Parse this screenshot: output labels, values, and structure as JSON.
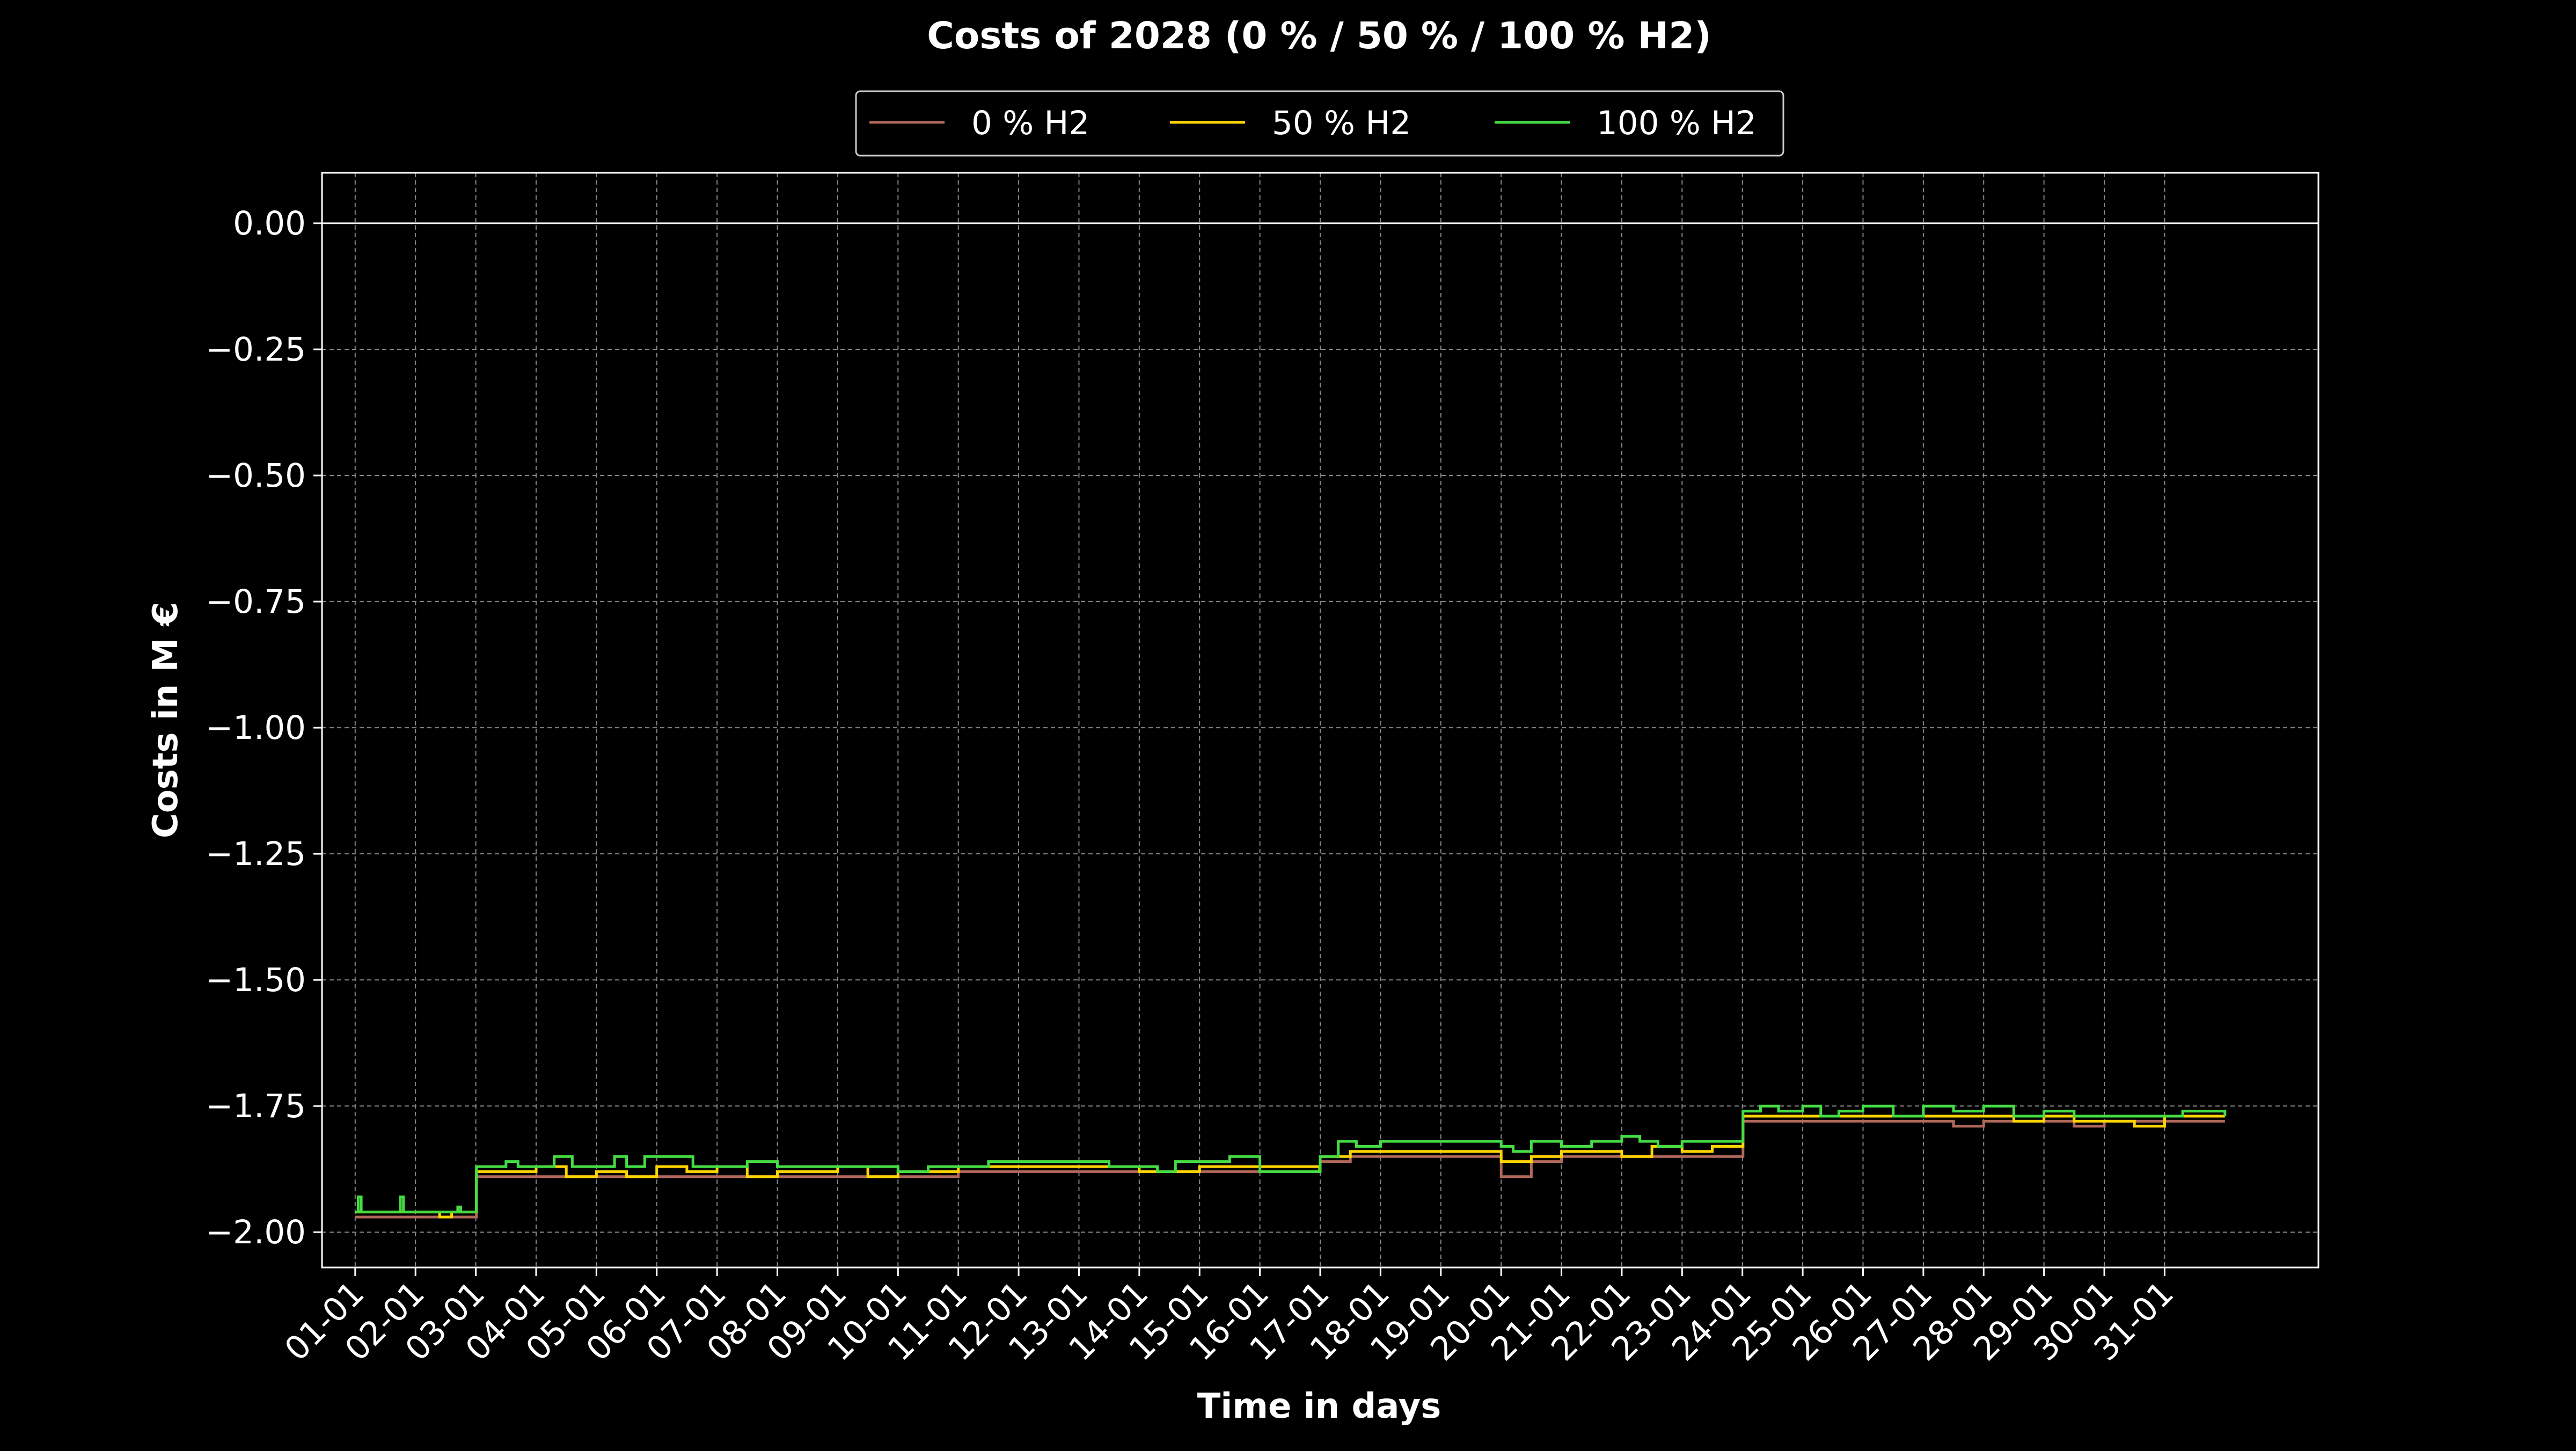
{
  "chart_data": {
    "type": "line",
    "title": "Costs of 2028 (0 % / 50 % / 100 % H2)",
    "xlabel": "Time in days",
    "ylabel": "Costs in M €",
    "background": "#000000",
    "grid": true,
    "legend_position": "top-center",
    "x_ticks": [
      "01-01",
      "02-01",
      "03-01",
      "04-01",
      "05-01",
      "06-01",
      "07-01",
      "08-01",
      "09-01",
      "10-01",
      "11-01",
      "12-01",
      "13-01",
      "14-01",
      "15-01",
      "16-01",
      "17-01",
      "18-01",
      "19-01",
      "20-01",
      "21-01",
      "22-01",
      "23-01",
      "24-01",
      "25-01",
      "26-01",
      "27-01",
      "28-01",
      "29-01",
      "30-01",
      "31-01"
    ],
    "x_unit": "day of January 2028",
    "xlim": [
      -0.55,
      32.55
    ],
    "y_ticks": [
      0.0,
      -0.25,
      -0.5,
      -0.75,
      -1.0,
      -1.25,
      -1.5,
      -1.75,
      -2.0
    ],
    "y_tick_labels": [
      "0.00",
      "−0.25",
      "−0.50",
      "−0.75",
      "−1.00",
      "−1.25",
      "−1.50",
      "−1.75",
      "−2.00"
    ],
    "ylim": [
      -2.07,
      0.1
    ],
    "reference_line_y": 0.0,
    "series": [
      {
        "name": "0 % H2",
        "color": "#b0685a",
        "x": [
          0,
          0.5,
          1,
          1.5,
          2,
          2.01,
          3,
          4,
          5,
          6,
          7,
          8,
          9,
          10,
          11,
          12,
          13,
          14,
          14.01,
          15,
          15.99,
          16,
          16.5,
          17,
          17.5,
          18,
          18.5,
          19,
          19.5,
          20,
          20.5,
          21,
          21.5,
          22,
          22.5,
          23,
          23.01,
          24,
          25,
          26,
          26.5,
          27,
          28,
          28.5,
          29,
          30,
          30.5,
          31
        ],
        "y": [
          -1.97,
          -1.97,
          -1.97,
          -1.97,
          -1.97,
          -1.89,
          -1.89,
          -1.89,
          -1.89,
          -1.89,
          -1.89,
          -1.89,
          -1.89,
          -1.88,
          -1.88,
          -1.88,
          -1.88,
          -1.88,
          -1.88,
          -1.88,
          -1.88,
          -1.86,
          -1.85,
          -1.85,
          -1.85,
          -1.85,
          -1.85,
          -1.89,
          -1.86,
          -1.85,
          -1.85,
          -1.85,
          -1.85,
          -1.85,
          -1.85,
          -1.85,
          -1.78,
          -1.78,
          -1.78,
          -1.78,
          -1.79,
          -1.78,
          -1.78,
          -1.79,
          -1.78,
          -1.78,
          -1.78,
          -1.78
        ]
      },
      {
        "name": "50 % H2",
        "color": "#ffd400",
        "x": [
          0,
          0.5,
          1,
          1.4,
          1.6,
          2,
          2.01,
          2.5,
          3,
          3.5,
          4,
          4.5,
          5,
          5.5,
          6,
          6.5,
          7,
          7.5,
          8,
          8.5,
          9,
          9.5,
          10,
          11,
          12,
          13,
          14,
          15,
          15.99,
          16,
          16.5,
          17,
          17.5,
          18,
          18.5,
          19,
          19.5,
          20,
          20.5,
          21,
          21.5,
          22,
          22.5,
          23,
          23.01,
          24,
          25,
          26,
          27,
          27.5,
          28,
          28.5,
          29,
          29.5,
          30,
          30.5,
          31
        ],
        "y": [
          -1.96,
          -1.96,
          -1.96,
          -1.97,
          -1.96,
          -1.96,
          -1.88,
          -1.88,
          -1.87,
          -1.89,
          -1.88,
          -1.89,
          -1.87,
          -1.88,
          -1.87,
          -1.89,
          -1.88,
          -1.88,
          -1.87,
          -1.89,
          -1.88,
          -1.88,
          -1.87,
          -1.87,
          -1.87,
          -1.88,
          -1.87,
          -1.87,
          -1.88,
          -1.85,
          -1.84,
          -1.84,
          -1.84,
          -1.84,
          -1.84,
          -1.86,
          -1.85,
          -1.84,
          -1.84,
          -1.85,
          -1.83,
          -1.84,
          -1.83,
          -1.83,
          -1.77,
          -1.77,
          -1.77,
          -1.77,
          -1.77,
          -1.78,
          -1.77,
          -1.78,
          -1.78,
          -1.79,
          -1.77,
          -1.77,
          -1.77
        ]
      },
      {
        "name": "100 % H2",
        "color": "#44dd44",
        "x": [
          0,
          0.05,
          0.1,
          0.5,
          0.7,
          0.75,
          0.8,
          1,
          1.5,
          1.7,
          1.75,
          1.8,
          2,
          2.01,
          2.3,
          2.5,
          2.7,
          3,
          3.3,
          3.6,
          4,
          4.3,
          4.5,
          4.8,
          5,
          5.3,
          5.6,
          6,
          6.5,
          7,
          7.5,
          8,
          8.5,
          9,
          9.5,
          10,
          10.5,
          11,
          11.5,
          12,
          12.5,
          13,
          13.3,
          13.6,
          14,
          14.5,
          15,
          15.5,
          15.99,
          16,
          16.3,
          16.6,
          17,
          17.5,
          18,
          18.5,
          19,
          19.2,
          19.5,
          20,
          20.5,
          21,
          21.3,
          21.6,
          22,
          22.3,
          22.6,
          23,
          23.01,
          23.3,
          23.6,
          24,
          24.3,
          24.6,
          25,
          25.5,
          26,
          26.5,
          27,
          27.5,
          28,
          28.5,
          29,
          29.5,
          30,
          30.3,
          30.6,
          31
        ],
        "y": [
          -1.96,
          -1.93,
          -1.96,
          -1.96,
          -1.96,
          -1.93,
          -1.96,
          -1.96,
          -1.96,
          -1.95,
          -1.96,
          -1.96,
          -1.96,
          -1.87,
          -1.87,
          -1.86,
          -1.87,
          -1.87,
          -1.85,
          -1.87,
          -1.87,
          -1.85,
          -1.87,
          -1.85,
          -1.85,
          -1.85,
          -1.87,
          -1.87,
          -1.86,
          -1.87,
          -1.87,
          -1.87,
          -1.87,
          -1.88,
          -1.87,
          -1.87,
          -1.86,
          -1.86,
          -1.86,
          -1.86,
          -1.87,
          -1.87,
          -1.88,
          -1.86,
          -1.86,
          -1.85,
          -1.88,
          -1.88,
          -1.88,
          -1.85,
          -1.82,
          -1.83,
          -1.82,
          -1.82,
          -1.82,
          -1.82,
          -1.83,
          -1.84,
          -1.82,
          -1.83,
          -1.82,
          -1.81,
          -1.82,
          -1.83,
          -1.82,
          -1.82,
          -1.82,
          -1.82,
          -1.76,
          -1.75,
          -1.76,
          -1.75,
          -1.77,
          -1.76,
          -1.75,
          -1.77,
          -1.75,
          -1.76,
          -1.75,
          -1.77,
          -1.76,
          -1.77,
          -1.77,
          -1.77,
          -1.77,
          -1.76,
          -1.76,
          -1.77
        ]
      }
    ]
  }
}
